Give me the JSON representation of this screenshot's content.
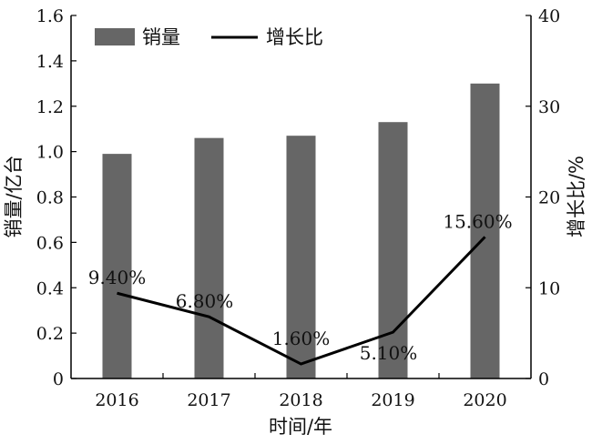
{
  "chart_data": {
    "type": "bar+line",
    "categories": [
      "2016",
      "2017",
      "2018",
      "2019",
      "2020"
    ],
    "series": [
      {
        "name": "销量",
        "type": "bar",
        "axis": "left",
        "values": [
          0.99,
          1.06,
          1.07,
          1.13,
          1.3
        ],
        "color": "#666666"
      },
      {
        "name": "增长比",
        "type": "line",
        "axis": "right",
        "values": [
          9.4,
          6.8,
          1.6,
          5.1,
          15.6
        ],
        "labels": [
          "9.40%",
          "6.80%",
          "1.60%",
          "5.10%",
          "15.60%"
        ],
        "color": "#000000"
      }
    ],
    "xlabel": "时间/年",
    "ylabel_left": "销量/亿台",
    "ylabel_right": "增长比/%",
    "ylim_left": [
      0,
      1.6
    ],
    "yticks_left": [
      "0",
      "0.2",
      "0.4",
      "0.6",
      "0.8",
      "1.0",
      "1.2",
      "1.4",
      "1.6"
    ],
    "ylim_right": [
      0,
      40
    ],
    "yticks_right": [
      "0",
      "10",
      "20",
      "30",
      "40"
    ],
    "grid": false,
    "legend_position": "top-left"
  }
}
